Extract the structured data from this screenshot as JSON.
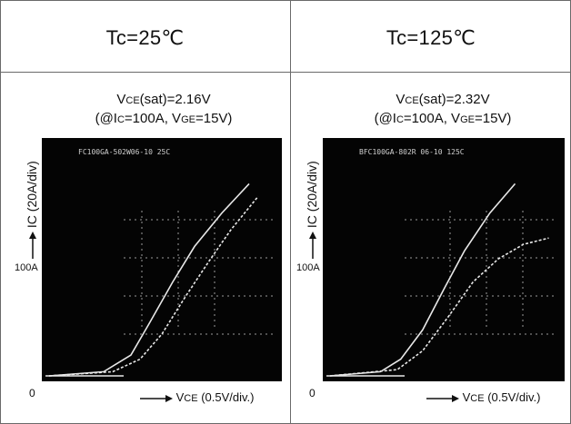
{
  "panels": [
    {
      "header": "Tc=25℃",
      "vce_sat": {
        "v1": "V",
        "sub1": "CE",
        "rest": "(sat)=2.16V"
      },
      "conditions": {
        "a": "(@I",
        "sub_a": "C",
        "b": "=100A, V",
        "sub_b": "GE",
        "c": "=15V)"
      },
      "y_label": "IC (20A/div)",
      "y_marker": "100A",
      "origin": "0",
      "x_label": {
        "v": "V",
        "sub": "CE",
        "rest": " (0.5V/div.)"
      },
      "scope_text": "FC100GA-502W06-10  25C",
      "curves": {
        "c1": [
          [
            0.0,
            0.0
          ],
          [
            0.3,
            0.02
          ],
          [
            0.45,
            0.1
          ],
          [
            0.55,
            0.25
          ],
          [
            0.68,
            0.45
          ],
          [
            0.8,
            0.62
          ],
          [
            0.95,
            0.78
          ],
          [
            1.1,
            0.92
          ]
        ],
        "c2": [
          [
            0.0,
            0.0
          ],
          [
            0.35,
            0.02
          ],
          [
            0.5,
            0.08
          ],
          [
            0.62,
            0.2
          ],
          [
            0.75,
            0.38
          ],
          [
            0.88,
            0.55
          ],
          [
            1.0,
            0.7
          ],
          [
            1.15,
            0.86
          ]
        ]
      }
    },
    {
      "header": "Tc=125℃",
      "vce_sat": {
        "v1": "V",
        "sub1": "CE",
        "rest": "(sat)=2.32V"
      },
      "conditions": {
        "a": "(@I",
        "sub_a": "C",
        "b": "=100A, V",
        "sub_b": "GE",
        "c": "=15V)"
      },
      "y_label": "IC (20A/div)",
      "y_marker": "100A",
      "origin": "0",
      "x_label": {
        "v": "V",
        "sub": "CE",
        "rest": " (0.5V/div.)"
      },
      "scope_text": "BFC100GA-802R 06-10 125C",
      "curves": {
        "c1": [
          [
            0.0,
            0.0
          ],
          [
            0.3,
            0.02
          ],
          [
            0.42,
            0.08
          ],
          [
            0.55,
            0.22
          ],
          [
            0.68,
            0.42
          ],
          [
            0.8,
            0.6
          ],
          [
            0.95,
            0.78
          ],
          [
            1.1,
            0.92
          ]
        ],
        "c2": [
          [
            0.0,
            0.0
          ],
          [
            0.4,
            0.03
          ],
          [
            0.55,
            0.12
          ],
          [
            0.7,
            0.28
          ],
          [
            0.85,
            0.45
          ],
          [
            1.0,
            0.56
          ],
          [
            1.15,
            0.63
          ],
          [
            1.3,
            0.66
          ]
        ]
      }
    }
  ],
  "colors": {
    "screen": "#040404",
    "trace": "#e8e8e8",
    "grid": "#9a9a9a",
    "border": "#6a6a6a"
  }
}
